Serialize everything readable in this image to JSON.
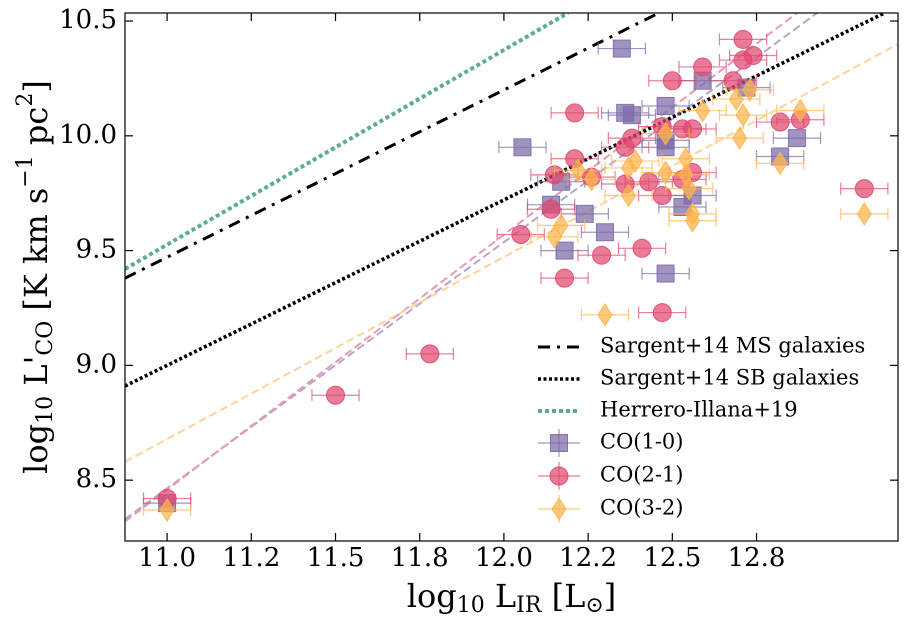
{
  "chart_data": {
    "type": "scatter",
    "xlabel": [
      "log",
      "10",
      " L",
      "IR",
      " [L",
      "⊙",
      "]"
    ],
    "ylabel": [
      "log",
      "10",
      " L'",
      "CO",
      " [K km s",
      "−1",
      " pc",
      "2",
      "]"
    ],
    "xlim": [
      10.875,
      13.17
    ],
    "ylim": [
      8.235,
      10.535
    ],
    "xticks": [
      {
        "value": 11.0,
        "label": "11.0"
      },
      {
        "value": 11.25,
        "label": "11.2"
      },
      11.5,
      {
        "value": 11.75,
        "label": "11.8"
      },
      {
        "value": 12.0,
        "label": "12.0"
      },
      {
        "value": 12.25,
        "label": "12.2"
      },
      12.5,
      {
        "value": 12.75,
        "label": "12.8"
      }
    ],
    "yticks": [
      8.5,
      {
        "value": 9.0,
        "label": "9.0"
      },
      9.5,
      {
        "value": 10.0,
        "label": "10.0"
      },
      10.5
    ],
    "legend": "lower right",
    "lines": [
      {
        "name": "Sargent+14 MS galaxies",
        "color": "#000000",
        "style": "dashdot",
        "x": [
          10.875,
          12.46
        ],
        "y": [
          9.38,
          10.535
        ]
      },
      {
        "name": "Sargent+14 SB galaxies",
        "color": "#000000",
        "style": "dotted",
        "x": [
          10.875,
          13.13
        ],
        "y": [
          8.91,
          10.535
        ]
      },
      {
        "name": "Herrero-Illana+19",
        "color": "#5aae8f",
        "style": "dotted",
        "x": [
          10.875,
          12.19
        ],
        "y": [
          9.42,
          10.535
        ]
      }
    ],
    "fit_lines": [
      {
        "color": "#b3a6cf",
        "x": [
          10.875,
          12.93
        ],
        "y": [
          8.33,
          10.535
        ]
      },
      {
        "color": "#e79ab0",
        "x": [
          10.875,
          12.87
        ],
        "y": [
          8.32,
          10.535
        ]
      },
      {
        "color": "#fbd49a",
        "x": [
          10.875,
          13.17
        ],
        "y": [
          8.58,
          10.4
        ]
      }
    ],
    "series": [
      {
        "name": "CO(1-0)",
        "color": "#7b6aa8",
        "marker": "square",
        "xerr": 0.07,
        "x": [
          11.0,
          12.055,
          12.14,
          12.17,
          12.18,
          12.24,
          12.3,
          12.35,
          12.36,
          12.38,
          12.48,
          12.48,
          12.48,
          12.48,
          12.53,
          12.56,
          12.59,
          12.72,
          12.82,
          12.87
        ],
        "values": [
          8.4,
          9.95,
          9.7,
          9.8,
          9.5,
          9.66,
          9.58,
          10.38,
          10.1,
          10.09,
          10.13,
          9.98,
          9.95,
          9.4,
          9.69,
          9.74,
          10.24,
          10.21,
          9.91,
          9.99
        ]
      },
      {
        "name": "CO(2-1)",
        "color": "#e0486e",
        "marker": "circle",
        "xerr": 0.07,
        "x": [
          11.0,
          11.5,
          11.78,
          12.05,
          12.14,
          12.15,
          12.18,
          12.21,
          12.21,
          12.26,
          12.29,
          12.36,
          12.36,
          12.38,
          12.41,
          12.43,
          12.47,
          12.47,
          12.5,
          12.47,
          12.53,
          12.53,
          12.56,
          12.56,
          12.59,
          12.68,
          12.71,
          12.71,
          12.74,
          12.82,
          12.88,
          13.07
        ],
        "values": [
          8.42,
          8.87,
          9.05,
          9.57,
          9.68,
          9.83,
          9.38,
          9.9,
          10.1,
          9.82,
          9.48,
          9.79,
          9.95,
          9.99,
          9.51,
          9.8,
          9.23,
          9.74,
          10.24,
          10.04,
          10.03,
          9.81,
          9.84,
          10.03,
          10.3,
          10.24,
          10.42,
          10.33,
          10.35,
          10.06,
          10.07,
          9.77
        ]
      },
      {
        "name": "CO(3-2)",
        "color": "#fdb44b",
        "marker": "diamond",
        "xerr": 0.07,
        "x": [
          11.0,
          12.15,
          12.17,
          12.22,
          12.26,
          12.3,
          12.37,
          12.37,
          12.39,
          12.48,
          12.48,
          12.54,
          12.54,
          12.55,
          12.56,
          12.56,
          12.59,
          12.69,
          12.71,
          12.7,
          12.73,
          12.82,
          12.88,
          13.07
        ],
        "values": [
          8.37,
          9.56,
          9.61,
          9.85,
          9.81,
          9.22,
          9.74,
          9.86,
          9.89,
          10.01,
          9.84,
          9.9,
          9.83,
          9.77,
          9.63,
          9.66,
          10.11,
          10.16,
          10.09,
          9.99,
          10.2,
          9.88,
          10.11,
          9.66
        ]
      }
    ]
  }
}
